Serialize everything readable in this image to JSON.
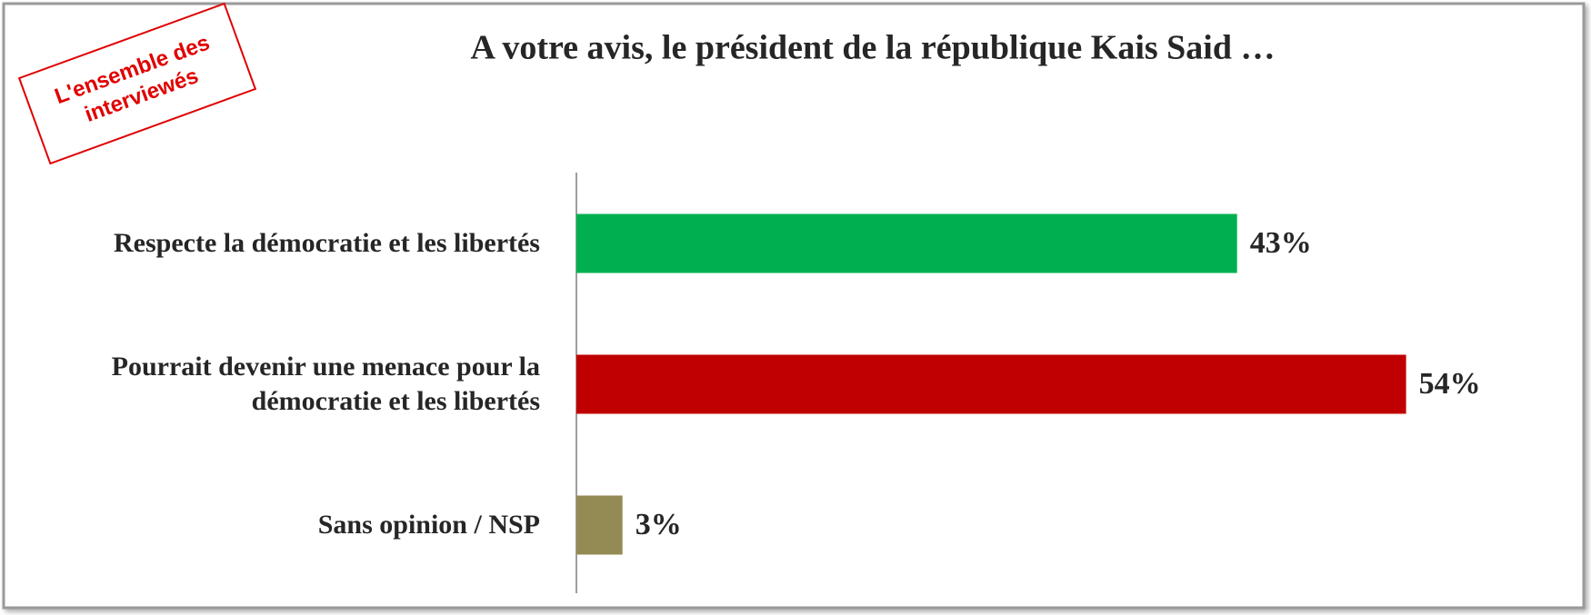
{
  "chart_data": {
    "type": "bar",
    "orientation": "horizontal",
    "title": "A votre avis, le président de la république Kais Said  …",
    "annotation": [
      "L'ensemble des",
      "interviewés"
    ],
    "categories": [
      [
        "Respecte la démocratie et les libertés"
      ],
      [
        "Pourrait devenir une menace pour la",
        "démocratie et les libertés"
      ],
      [
        "Sans opinion / NSP"
      ]
    ],
    "values": [
      43,
      54,
      3
    ],
    "value_labels": [
      "43%",
      "54%",
      "3%"
    ],
    "colors": [
      "#00b050",
      "#c00000",
      "#948a54"
    ]
  }
}
